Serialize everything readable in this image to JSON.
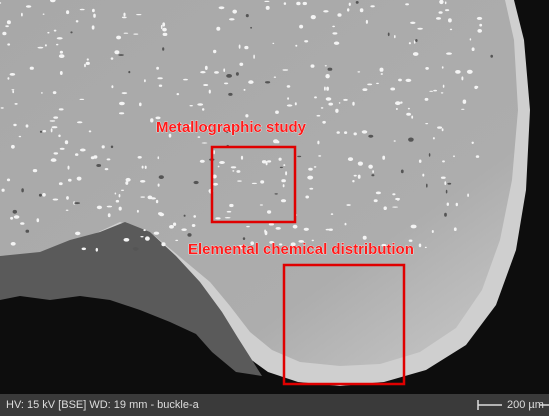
{
  "annotations": [
    {
      "label": "Metallographic study"
    },
    {
      "label": "Elemental chemical distribution"
    }
  ],
  "info_bar": {
    "text": "HV: 15 kV [BSE] WD: 19 mm - buckle-a",
    "scale": "200 µm"
  }
}
